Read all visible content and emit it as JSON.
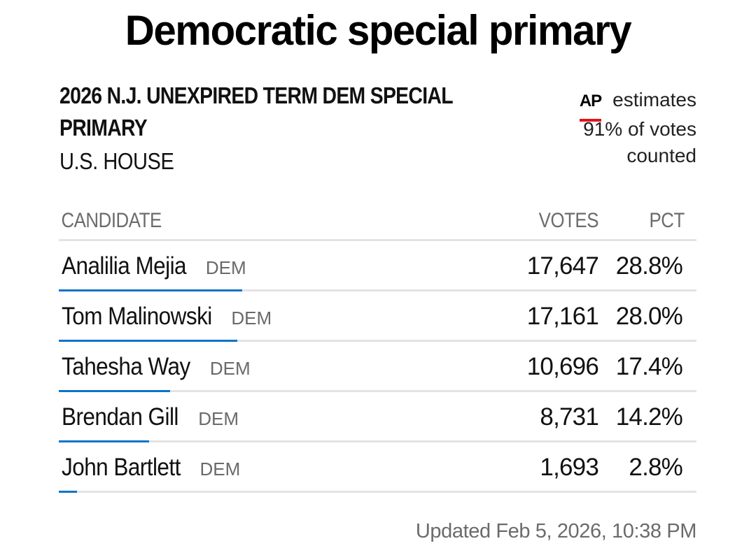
{
  "page": {
    "title": "Democratic special primary"
  },
  "race": {
    "name": "2026 N.J. UNEXPIRED TERM DEM SPECIAL PRIMARY",
    "office": "U.S. HOUSE"
  },
  "source": {
    "logo": "AP",
    "line1": "estimates",
    "line2": "91% of votes",
    "line3": "counted",
    "accent_color": "#e3141e"
  },
  "table": {
    "headers": {
      "candidate": "CANDIDATE",
      "votes": "VOTES",
      "pct": "PCT"
    },
    "bar_color": "#0b74c8",
    "track_color": "#e3e3e3",
    "rows": [
      {
        "name": "Analilia Mejia",
        "party": "DEM",
        "votes": "17,647",
        "pct": "28.8%",
        "pct_value": 28.8
      },
      {
        "name": "Tom Malinowski",
        "party": "DEM",
        "votes": "17,161",
        "pct": "28.0%",
        "pct_value": 28.0
      },
      {
        "name": "Tahesha Way",
        "party": "DEM",
        "votes": "10,696",
        "pct": "17.4%",
        "pct_value": 17.4
      },
      {
        "name": "Brendan Gill",
        "party": "DEM",
        "votes": "8,731",
        "pct": "14.2%",
        "pct_value": 14.2
      },
      {
        "name": "John Bartlett",
        "party": "DEM",
        "votes": "1,693",
        "pct": "2.8%",
        "pct_value": 2.8
      }
    ]
  },
  "footer": {
    "updated": "Updated Feb 5, 2026, 10:38 PM"
  }
}
